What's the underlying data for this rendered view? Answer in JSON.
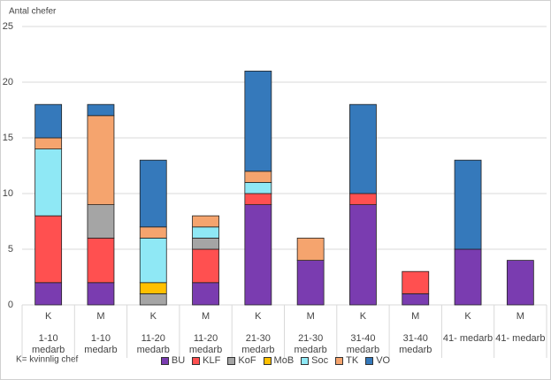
{
  "chart_data": {
    "type": "bar",
    "stacked": true,
    "y_label": "Antal chefer",
    "footnote": "K= kvinnlig chef",
    "categories": [
      "K",
      "M",
      "K",
      "M",
      "K",
      "M",
      "K",
      "M",
      "K",
      "M"
    ],
    "groups": [
      "1-10 medarb",
      "1-10 medarb",
      "11-20 medarb",
      "11-20 medarb",
      "21-30 medarb",
      "21-30 medarb",
      "31-40 medarb",
      "31-40 medarb",
      "41- medarb",
      "41- medarb"
    ],
    "series": [
      {
        "name": "BU",
        "color": "#7a3cb0",
        "values": [
          2,
          2,
          0,
          2,
          9,
          4,
          9,
          1,
          5,
          4
        ]
      },
      {
        "name": "KLF",
        "color": "#ff5050",
        "values": [
          6,
          4,
          0,
          3,
          1,
          0,
          1,
          2,
          0,
          0
        ]
      },
      {
        "name": "KoF",
        "color": "#a5a5a5",
        "values": [
          0,
          3,
          1,
          1,
          0,
          0,
          0,
          0,
          0,
          0
        ]
      },
      {
        "name": "MoB",
        "color": "#ffc000",
        "values": [
          0,
          0,
          1,
          0,
          0,
          0,
          0,
          0,
          0,
          0
        ]
      },
      {
        "name": "Soc",
        "color": "#8fe8f5",
        "values": [
          6,
          0,
          4,
          1,
          1,
          0,
          0,
          0,
          0,
          0
        ]
      },
      {
        "name": "TK",
        "color": "#f5a46e",
        "values": [
          1,
          8,
          1,
          1,
          1,
          2,
          0,
          0,
          0,
          0
        ]
      },
      {
        "name": "VO",
        "color": "#3579bb",
        "values": [
          3,
          1,
          6,
          0,
          9,
          0,
          8,
          0,
          8,
          0
        ]
      }
    ],
    "ylim": [
      0,
      25
    ],
    "yticks": [
      0,
      5,
      10,
      15,
      20,
      25
    ],
    "grid": true
  }
}
